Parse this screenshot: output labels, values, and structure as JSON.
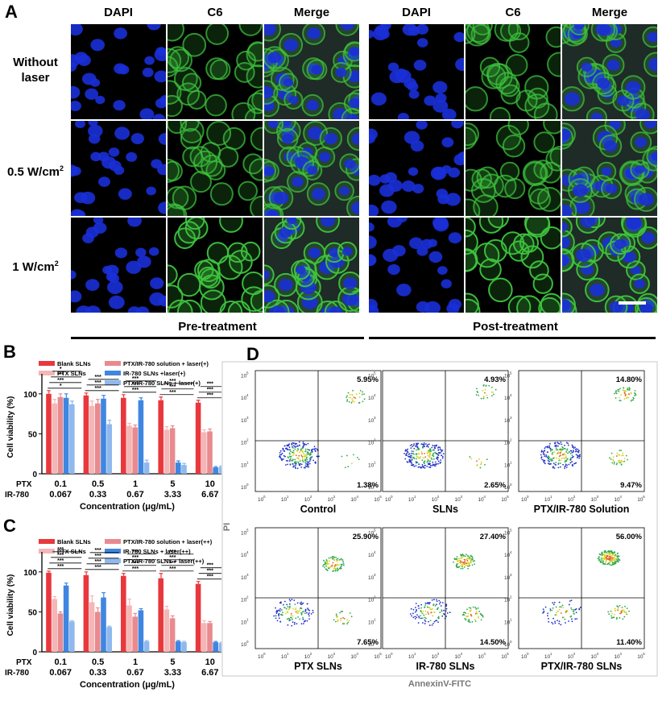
{
  "panels": {
    "a": "A",
    "b": "B",
    "c": "C",
    "d": "D"
  },
  "panel_a": {
    "columns": [
      "DAPI",
      "C6",
      "Merge",
      "DAPI",
      "C6",
      "Merge"
    ],
    "rows": [
      {
        "line1": "Without",
        "line2": "laser"
      },
      {
        "line1": "0.5 W/cm",
        "sup": "2"
      },
      {
        "line1": "1 W/cm",
        "sup": "2"
      }
    ],
    "groups": [
      "Pre-treatment",
      "Post-treatment"
    ],
    "colors": {
      "dapi": "#1a2fd6",
      "c6": "#3fc43f",
      "merge_bg": "#1f2b26"
    }
  },
  "chart_data": [
    {
      "type": "bar",
      "panel": "B",
      "ylabel": "Cell viability (%)",
      "xlabel": "Concentration (μg/mL)",
      "ylim": [
        0,
        125
      ],
      "yticks": [
        0,
        50,
        100
      ],
      "row_labels": [
        "PTX",
        "IR-780"
      ],
      "categories_ptx": [
        "0.1",
        "0.5",
        "1",
        "5",
        "10"
      ],
      "categories_ir": [
        "0.067",
        "0.33",
        "0.67",
        "3.33",
        "6.67"
      ],
      "series": [
        {
          "name": "Blank SLNs",
          "color": "#e8383d",
          "values": [
            100,
            98,
            95,
            92,
            89
          ],
          "err": [
            4,
            3,
            4,
            4,
            3
          ]
        },
        {
          "name": "PTX SLNs",
          "color": "#f4b6b6",
          "values": [
            88,
            85,
            60,
            55,
            52
          ],
          "err": [
            5,
            6,
            3,
            4,
            3
          ]
        },
        {
          "name": "PTX/IR-780 solution + laser(+)",
          "color": "#e98a8f",
          "values": [
            96,
            88,
            58,
            57,
            53
          ],
          "err": [
            4,
            5,
            3,
            3,
            3
          ]
        },
        {
          "name": "IR-780 SLNs +laser(+)",
          "color": "#3f86e0",
          "values": [
            95,
            94,
            92,
            14,
            8
          ],
          "err": [
            5,
            4,
            3,
            2,
            1
          ]
        },
        {
          "name": "PTX/IR-780 SLNs + laser(+)",
          "color": "#8fb9ee",
          "values": [
            87,
            62,
            14,
            11,
            9
          ],
          "err": [
            4,
            5,
            3,
            2,
            1
          ]
        }
      ],
      "annotations": [
        "*",
        "***",
        "***",
        "*",
        "***",
        "***",
        "***",
        "***",
        "***",
        "***",
        "***",
        "***",
        "***",
        "***",
        "***",
        "***"
      ]
    },
    {
      "type": "bar",
      "panel": "C",
      "ylabel": "Cell viability (%)",
      "xlabel": "Concentration (μg/mL)",
      "ylim": [
        0,
        125
      ],
      "yticks": [
        0,
        50,
        100
      ],
      "row_labels": [
        "PTX",
        "IR-780"
      ],
      "categories_ptx": [
        "0.1",
        "0.5",
        "1",
        "5",
        "10"
      ],
      "categories_ir": [
        "0.067",
        "0.33",
        "0.67",
        "3.33",
        "6.67"
      ],
      "series": [
        {
          "name": "Blank SLNs",
          "color": "#e8383d",
          "values": [
            99,
            96,
            95,
            92,
            85
          ],
          "err": [
            2,
            4,
            3,
            6,
            3
          ]
        },
        {
          "name": "PTX SLNs",
          "color": "#f4b6b6",
          "values": [
            66,
            62,
            58,
            53,
            36
          ],
          "err": [
            3,
            8,
            8,
            4,
            3
          ]
        },
        {
          "name": "PTX/IR-780 solution + laser(++)",
          "color": "#e98a8f",
          "values": [
            48,
            50,
            44,
            42,
            36
          ],
          "err": [
            2,
            5,
            4,
            3,
            2
          ]
        },
        {
          "name": "IR-780 SLNs + laser(++)",
          "color": "#3f86e0",
          "values": [
            83,
            68,
            52,
            13,
            12
          ],
          "err": [
            3,
            6,
            2,
            1,
            1
          ]
        },
        {
          "name": "PTX/IR-780 SLNs + laser(++)",
          "color": "#8fb9ee",
          "values": [
            38,
            31,
            13,
            12,
            11
          ],
          "err": [
            1,
            1,
            1,
            1,
            1
          ]
        }
      ],
      "annotations": [
        "***",
        "***",
        "***",
        "***",
        "***",
        "***",
        "***",
        "***",
        "***",
        "***",
        "***",
        "***",
        "***",
        "***",
        "***",
        "***",
        "***",
        "***",
        "***"
      ]
    },
    {
      "type": "scatter",
      "panel": "D",
      "xlabel": "AnnexinV-FITC",
      "ylabel": "PI",
      "axis": "log",
      "tick_labels": [
        "10",
        "10",
        "10",
        "10",
        "10",
        "10"
      ],
      "tick_exponents": [
        "0",
        "1",
        "2",
        "3",
        "4",
        "5"
      ],
      "plots": [
        {
          "label": "Control",
          "upper_right": "5.95%",
          "lower_right": "1.38%"
        },
        {
          "label": "SLNs",
          "upper_right": "4.93%",
          "lower_right": "2.65%"
        },
        {
          "label": "PTX/IR-780 Solution",
          "upper_right": "14.80%",
          "lower_right": "9.47%"
        },
        {
          "label": "PTX SLNs",
          "upper_right": "25.90%",
          "lower_right": "7.65%"
        },
        {
          "label": "IR-780 SLNs",
          "upper_right": "27.40%",
          "lower_right": "14.50%"
        },
        {
          "label": "PTX/IR-780 SLNs",
          "upper_right": "56.00%",
          "lower_right": "11.40%"
        }
      ]
    }
  ]
}
